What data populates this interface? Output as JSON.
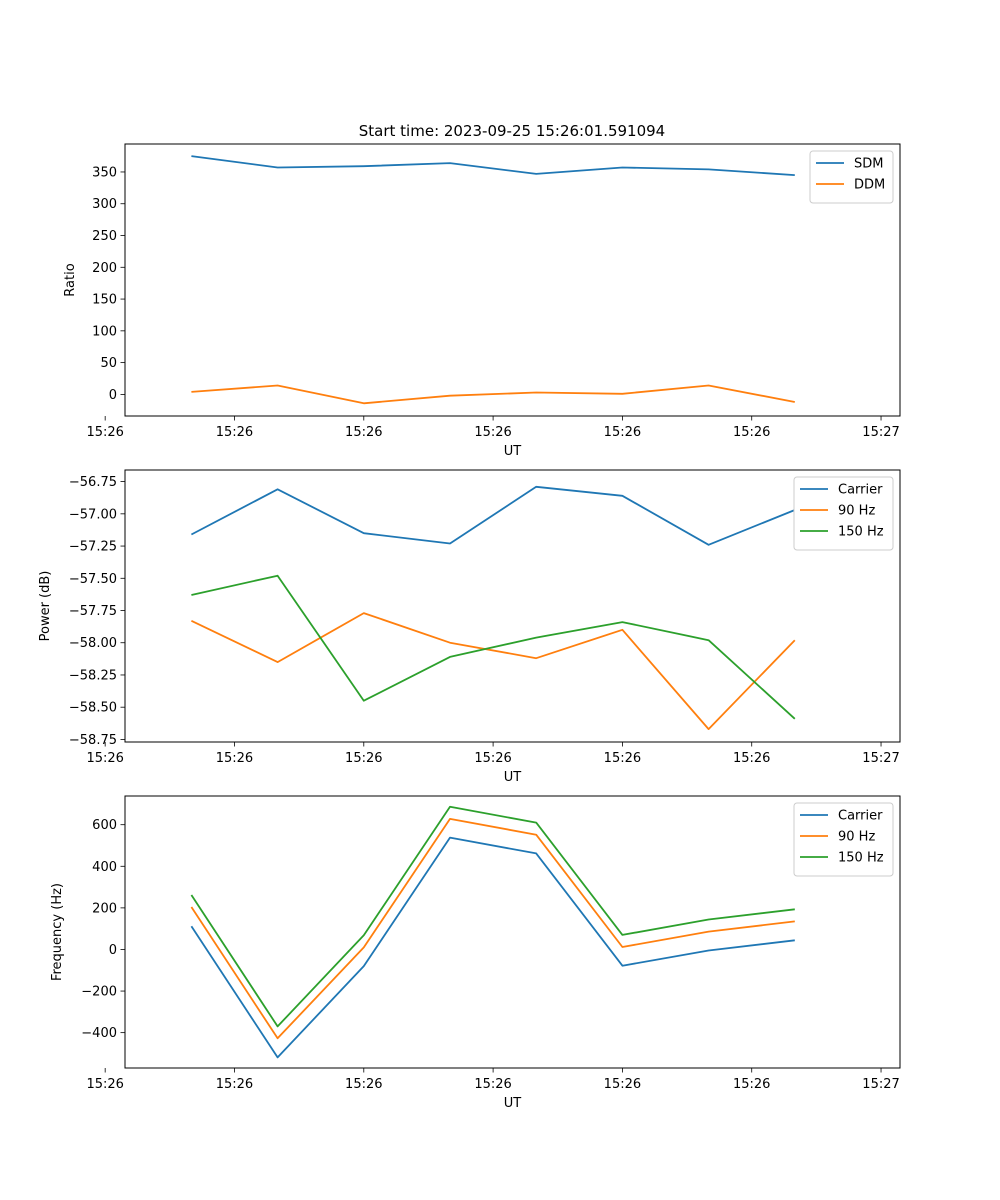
{
  "colors": {
    "blue": "#1f77b4",
    "orange": "#ff7f0e",
    "green": "#2ca02c"
  },
  "chart_data": [
    {
      "type": "line",
      "title": "Start time: 2023-09-25 15:26:01.591094",
      "xlabel": "UT",
      "ylabel": "Ratio",
      "x": [
        1,
        2,
        3,
        4,
        5,
        6,
        7,
        8
      ],
      "xlim": [
        0.23,
        9.22
      ],
      "xticks": [
        0,
        1.5,
        3,
        4.5,
        6,
        7.5,
        9
      ],
      "xtick_labels": [
        "15:26",
        "15:26",
        "15:26",
        "15:26",
        "15:26",
        "15:26",
        "15:27"
      ],
      "ylim": [
        -34,
        394
      ],
      "yticks": [
        0,
        50,
        100,
        150,
        200,
        250,
        300,
        350
      ],
      "ytick_labels": [
        "0",
        "50",
        "100",
        "150",
        "200",
        "250",
        "300",
        "350"
      ],
      "legend_position": "top-right",
      "series": [
        {
          "name": "SDM",
          "color": "#1f77b4",
          "values": [
            375,
            357,
            359,
            364,
            347,
            357,
            354,
            345
          ]
        },
        {
          "name": "DDM",
          "color": "#ff7f0e",
          "values": [
            4,
            14,
            -14,
            -2,
            3,
            1,
            14,
            -12
          ]
        }
      ]
    },
    {
      "type": "line",
      "xlabel": "UT",
      "ylabel": "Power (dB)",
      "x": [
        1,
        2,
        3,
        4,
        5,
        6,
        7,
        8
      ],
      "xlim": [
        0.23,
        9.22
      ],
      "xticks": [
        0,
        1.5,
        3,
        4.5,
        6,
        7.5,
        9
      ],
      "xtick_labels": [
        "15:26",
        "15:26",
        "15:26",
        "15:26",
        "15:26",
        "15:26",
        "15:27"
      ],
      "ylim": [
        -58.77,
        -56.66
      ],
      "yticks": [
        -58.75,
        -58.5,
        -58.25,
        -58.0,
        -57.75,
        -57.5,
        -57.25,
        -57.0,
        -56.75
      ],
      "ytick_labels": [
        "−58.75",
        "−58.50",
        "−58.25",
        "−58.00",
        "−57.75",
        "−57.50",
        "−57.25",
        "−57.00",
        "−56.75"
      ],
      "legend_position": "top-right",
      "series": [
        {
          "name": "Carrier",
          "color": "#1f77b4",
          "values": [
            -57.16,
            -56.81,
            -57.15,
            -57.23,
            -56.79,
            -56.86,
            -57.24,
            -56.97
          ]
        },
        {
          "name": "90 Hz",
          "color": "#ff7f0e",
          "values": [
            -57.83,
            -58.15,
            -57.77,
            -58.0,
            -58.12,
            -57.9,
            -58.67,
            -57.98
          ]
        },
        {
          "name": "150 Hz",
          "color": "#2ca02c",
          "values": [
            -57.63,
            -57.48,
            -58.45,
            -58.11,
            -57.96,
            -57.84,
            -57.98,
            -58.59
          ]
        }
      ]
    },
    {
      "type": "line",
      "xlabel": "UT",
      "ylabel": "Frequency (Hz)",
      "x": [
        1,
        2,
        3,
        4,
        5,
        6,
        7,
        8
      ],
      "xlim": [
        0.23,
        9.22
      ],
      "xticks": [
        0,
        1.5,
        3,
        4.5,
        6,
        7.5,
        9
      ],
      "xtick_labels": [
        "15:26",
        "15:26",
        "15:26",
        "15:26",
        "15:26",
        "15:26",
        "15:27"
      ],
      "ylim": [
        -570,
        738
      ],
      "yticks": [
        -400,
        -200,
        0,
        200,
        400,
        600
      ],
      "ytick_labels": [
        "−400",
        "−200",
        "0",
        "200",
        "400",
        "600"
      ],
      "legend_position": "top-right",
      "series": [
        {
          "name": "Carrier",
          "color": "#1f77b4",
          "values": [
            112,
            -519,
            -80,
            538,
            462,
            -78,
            -5,
            44
          ]
        },
        {
          "name": "90 Hz",
          "color": "#ff7f0e",
          "values": [
            204,
            -427,
            10,
            628,
            552,
            12,
            86,
            135
          ]
        },
        {
          "name": "150 Hz",
          "color": "#2ca02c",
          "values": [
            262,
            -370,
            68,
            686,
            610,
            70,
            144,
            193
          ]
        }
      ]
    }
  ]
}
